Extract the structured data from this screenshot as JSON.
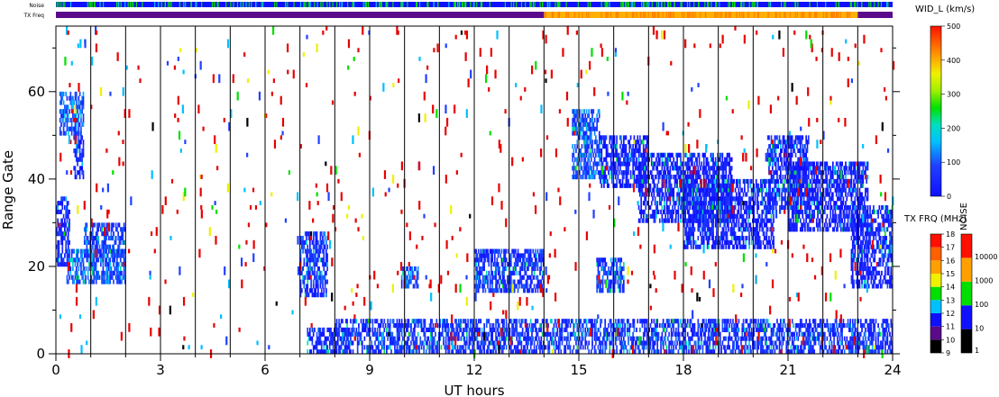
{
  "chart_data": {
    "type": "heatmap",
    "xlabel": "UT hours",
    "ylabel": "Range Gate",
    "xlim": [
      0,
      24
    ],
    "ylim": [
      0,
      75
    ],
    "x_ticks": [
      "0",
      "3",
      "6",
      "9",
      "12",
      "15",
      "18",
      "21",
      "24"
    ],
    "y_ticks": [
      "0",
      "20",
      "40",
      "60"
    ],
    "minor_x_ticks": [
      0,
      1,
      2,
      3,
      4,
      5,
      6,
      7,
      8,
      9,
      10,
      11,
      12,
      13,
      14,
      15,
      16,
      17,
      18,
      19,
      20,
      21,
      22,
      23,
      24
    ],
    "hour_lines": [
      1,
      2,
      3,
      4,
      5,
      6,
      7,
      8,
      9,
      10,
      11,
      12,
      13,
      14,
      15,
      16,
      17,
      18,
      19,
      20,
      21,
      22,
      23
    ],
    "top_bars": {
      "noise_label": "Noise",
      "txfreq_label": "TX Freq",
      "txfreq_segments": [
        {
          "start": 0,
          "end": 14,
          "level": "low"
        },
        {
          "start": 14,
          "end": 23,
          "level": "high"
        },
        {
          "start": 23,
          "end": 24,
          "level": "low"
        }
      ]
    },
    "wid_colorbar": {
      "title": "WID_L (km/s)",
      "min": 0,
      "max": 500,
      "ticks": [
        "0",
        "100",
        "200",
        "300",
        "400",
        "500"
      ]
    },
    "txfreq_colorbar": {
      "title": "TX FRQ (MHz)",
      "ticks": [
        "9",
        "10",
        "11",
        "12",
        "13",
        "14",
        "15",
        "16",
        "17",
        "18"
      ]
    },
    "noise_colorbar": {
      "title": "NOISE",
      "ticks": [
        "1",
        "10",
        "100",
        "1000",
        "10000"
      ]
    },
    "regions": [
      {
        "t0": 0.0,
        "t1": 0.4,
        "g0": 20,
        "g1": 36,
        "value": 40
      },
      {
        "t0": 0.1,
        "t1": 0.8,
        "g0": 50,
        "g1": 60,
        "value": 90
      },
      {
        "t0": 0.5,
        "t1": 0.8,
        "g0": 40,
        "g1": 50,
        "value": 40
      },
      {
        "t0": 0.3,
        "t1": 2.0,
        "g0": 16,
        "g1": 24,
        "value": 90
      },
      {
        "t0": 0.8,
        "t1": 2.0,
        "g0": 22,
        "g1": 30,
        "value": 70
      },
      {
        "t0": 7.0,
        "t1": 7.8,
        "g0": 13,
        "g1": 28,
        "value": 60
      },
      {
        "t0": 9.9,
        "t1": 10.4,
        "g0": 15,
        "g1": 20,
        "value": 80
      },
      {
        "t0": 12.0,
        "t1": 14.0,
        "g0": 14,
        "g1": 24,
        "value": 60
      },
      {
        "t0": 14.8,
        "t1": 15.6,
        "g0": 40,
        "g1": 56,
        "value": 90
      },
      {
        "t0": 15.6,
        "t1": 17.0,
        "g0": 38,
        "g1": 50,
        "value": 40
      },
      {
        "t0": 16.7,
        "t1": 19.4,
        "g0": 30,
        "g1": 46,
        "value": 30
      },
      {
        "t0": 18.0,
        "t1": 20.6,
        "g0": 24,
        "g1": 40,
        "value": 30
      },
      {
        "t0": 20.4,
        "t1": 21.6,
        "g0": 33,
        "g1": 50,
        "value": 40
      },
      {
        "t0": 21.0,
        "t1": 23.3,
        "g0": 28,
        "g1": 44,
        "value": 30
      },
      {
        "t0": 22.8,
        "t1": 24.0,
        "g0": 15,
        "g1": 34,
        "value": 40
      },
      {
        "t0": 15.5,
        "t1": 16.3,
        "g0": 14,
        "g1": 22,
        "value": 70
      },
      {
        "t0": 7.2,
        "t1": 8.4,
        "g0": 0,
        "g1": 6,
        "value": 40
      },
      {
        "t0": 8.0,
        "t1": 24.0,
        "g0": 0,
        "g1": 8,
        "value": 60
      }
    ]
  }
}
